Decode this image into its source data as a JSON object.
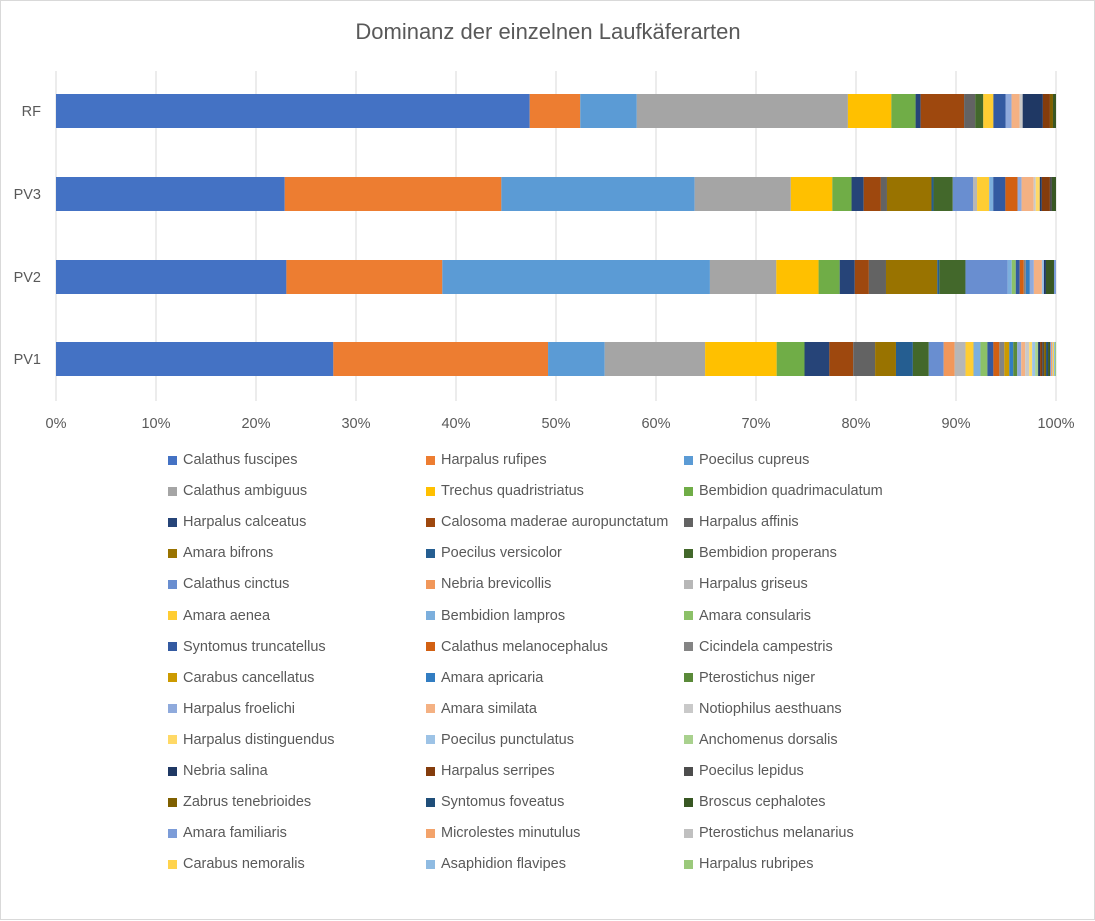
{
  "chart_data": {
    "type": "bar",
    "orientation": "horizontal",
    "stacked": "100%",
    "title": "Dominanz der einzelnen Laufkäferarten",
    "categories": [
      "RF",
      "PV3",
      "PV2",
      "PV1"
    ],
    "x_ticks": [
      "0%",
      "10%",
      "20%",
      "30%",
      "40%",
      "50%",
      "60%",
      "70%",
      "80%",
      "90%",
      "100%"
    ],
    "xlim": [
      0,
      100
    ],
    "grid": "vertical",
    "legend_position": "bottom",
    "series": [
      {
        "name": "Calathus fuscipes",
        "color": "#4472C4",
        "values": [
          46.9,
          22.6,
          22.9,
          27.9
        ]
      },
      {
        "name": "Harpalus rufipes",
        "color": "#ED7D31",
        "values": [
          5.0,
          21.4,
          15.5,
          21.6
        ]
      },
      {
        "name": "Poecilus cupreus",
        "color": "#5B9BD5",
        "values": [
          5.6,
          19.1,
          26.6,
          5.7
        ]
      },
      {
        "name": "Calathus ambiguus",
        "color": "#A5A5A5",
        "values": [
          20.9,
          9.5,
          6.6,
          10.1
        ]
      },
      {
        "name": "Trechus quadristriatus",
        "color": "#FFC000",
        "values": [
          4.3,
          4.1,
          4.2,
          7.2
        ]
      },
      {
        "name": "Bembidion quadrimaculatum",
        "color": "#70AD47",
        "values": [
          2.4,
          1.9,
          2.1,
          2.8
        ]
      },
      {
        "name": "Harpalus calceatus",
        "color": "#264478",
        "values": [
          0.5,
          1.2,
          1.5,
          2.5
        ]
      },
      {
        "name": "Calosoma maderae auropunctatum",
        "color": "#9E480E",
        "values": [
          4.3,
          1.7,
          1.4,
          2.4
        ]
      },
      {
        "name": "Harpalus affinis",
        "color": "#636363",
        "values": [
          1.1,
          0.6,
          1.7,
          2.2
        ]
      },
      {
        "name": "Amara bifrons",
        "color": "#997300",
        "values": [
          0.0,
          4.4,
          5.1,
          2.1
        ]
      },
      {
        "name": "Poecilus versicolor",
        "color": "#255E91",
        "values": [
          0.0,
          0.2,
          0.2,
          1.7
        ]
      },
      {
        "name": "Bembidion properans",
        "color": "#43682B",
        "values": [
          0.8,
          1.9,
          2.6,
          1.6
        ]
      },
      {
        "name": "Calathus cinctus",
        "color": "#698ED0",
        "values": [
          0.0,
          2.0,
          4.2,
          1.5
        ]
      },
      {
        "name": "Nebria brevicollis",
        "color": "#F1975A",
        "values": [
          0.0,
          0.0,
          0.0,
          1.1
        ]
      },
      {
        "name": "Harpalus griseus",
        "color": "#B7B7B7",
        "values": [
          0.0,
          0.4,
          0.0,
          1.1
        ]
      },
      {
        "name": "Amara aenea",
        "color": "#FFCD33",
        "values": [
          1.0,
          1.2,
          0.0,
          0.8
        ]
      },
      {
        "name": "Bembidion lampros",
        "color": "#7CAFDD",
        "values": [
          0.0,
          0.4,
          0.4,
          0.7
        ]
      },
      {
        "name": "Amara consularis",
        "color": "#8CC168",
        "values": [
          0.0,
          0.0,
          0.4,
          0.7
        ]
      },
      {
        "name": "Syntomus truncatellus",
        "color": "#335AA1",
        "values": [
          1.2,
          1.2,
          0.4,
          0.6
        ]
      },
      {
        "name": "Calathus melanocephalus",
        "color": "#D26012",
        "values": [
          0.0,
          1.2,
          0.4,
          0.6
        ]
      },
      {
        "name": "Cicindela campestris",
        "color": "#848484",
        "values": [
          0.0,
          0.0,
          0.2,
          0.5
        ]
      },
      {
        "name": "Carabus cancellatus",
        "color": "#CC9A00",
        "values": [
          0.0,
          0.0,
          0.0,
          0.5
        ]
      },
      {
        "name": "Amara apricaria",
        "color": "#327DC2",
        "values": [
          0.0,
          0.0,
          0.4,
          0.4
        ]
      },
      {
        "name": "Pterostichus niger",
        "color": "#5A8A39",
        "values": [
          0.0,
          0.0,
          0.0,
          0.4
        ]
      },
      {
        "name": "Harpalus froelichi",
        "color": "#8FAADC",
        "values": [
          0.6,
          0.4,
          0.4,
          0.4
        ]
      },
      {
        "name": "Amara similata",
        "color": "#F4B183",
        "values": [
          0.8,
          1.2,
          0.8,
          0.4
        ]
      },
      {
        "name": "Notiophilus aesthuans",
        "color": "#C9C9C9",
        "values": [
          0.3,
          0.2,
          0.0,
          0.4
        ]
      },
      {
        "name": "Harpalus distinguendus",
        "color": "#FFD966",
        "values": [
          0.0,
          0.4,
          0.0,
          0.3
        ]
      },
      {
        "name": "Poecilus punctulatus",
        "color": "#9DC3E6",
        "values": [
          0.0,
          0.0,
          0.2,
          0.3
        ]
      },
      {
        "name": "Anchomenus dorsalis",
        "color": "#A9D18E",
        "values": [
          0.0,
          0.0,
          0.0,
          0.3
        ]
      },
      {
        "name": "Nebria salina",
        "color": "#1F3864",
        "values": [
          2.0,
          0.2,
          0.2,
          0.2
        ]
      },
      {
        "name": "Harpalus serripes",
        "color": "#843C0C",
        "values": [
          0.7,
          0.8,
          0.0,
          0.2
        ]
      },
      {
        "name": "Poecilus lepidus",
        "color": "#4D4D4D",
        "values": [
          0.0,
          0.2,
          0.0,
          0.2
        ]
      },
      {
        "name": "Zabrus tenebrioides",
        "color": "#7F6000",
        "values": [
          0.3,
          0.0,
          0.0,
          0.2
        ]
      },
      {
        "name": "Syntomus foveatus",
        "color": "#1F4E79",
        "values": [
          0.0,
          0.0,
          0.0,
          0.2
        ]
      },
      {
        "name": "Broscus cephalotes",
        "color": "#385723",
        "values": [
          0.3,
          0.4,
          0.8,
          0.2
        ]
      },
      {
        "name": "Amara familiaris",
        "color": "#7C9CD8",
        "values": [
          0.0,
          0.0,
          0.2,
          0.1
        ]
      },
      {
        "name": "Microlestes minutulus",
        "color": "#F3A36B",
        "values": [
          0.0,
          0.0,
          0.0,
          0.1
        ]
      },
      {
        "name": "Pterostichus melanarius",
        "color": "#C0C0C0",
        "values": [
          0.0,
          0.0,
          0.0,
          0.1
        ]
      },
      {
        "name": "Carabus nemoralis",
        "color": "#FFD34D",
        "values": [
          0.0,
          0.0,
          0.0,
          0.1
        ]
      },
      {
        "name": "Asaphidion flavipes",
        "color": "#8FBBE2",
        "values": [
          0.0,
          0.0,
          0.0,
          0.1
        ]
      },
      {
        "name": "Harpalus rubripes",
        "color": "#9BC97B",
        "values": [
          0.0,
          0.0,
          0.0,
          0.1
        ]
      }
    ]
  }
}
